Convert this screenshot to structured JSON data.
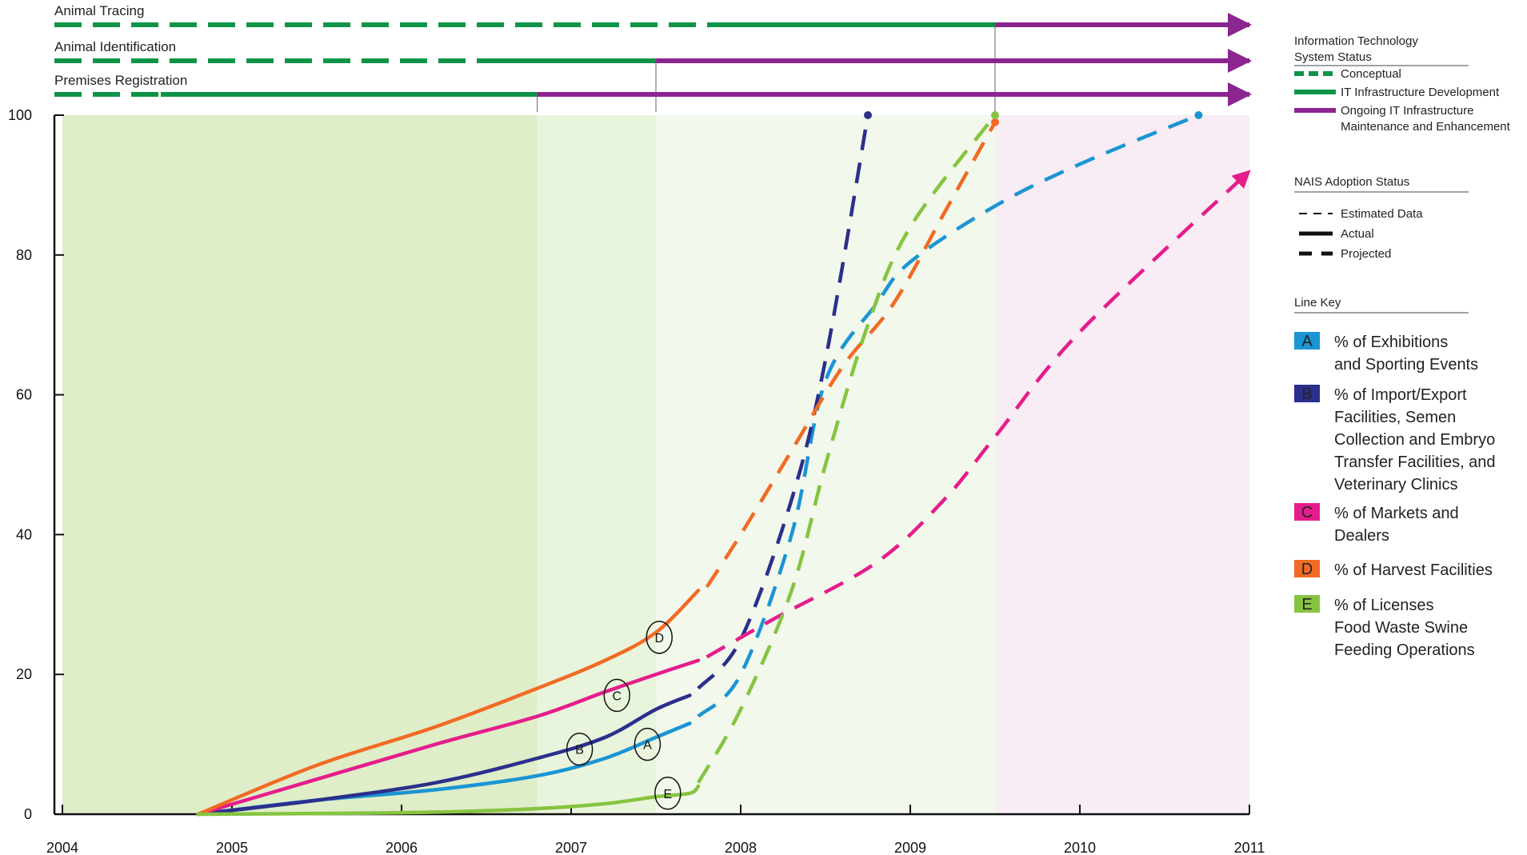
{
  "colors": {
    "conceptual": "#0f9447",
    "infrastructure": "#0f9447",
    "maintenance": "#8b2590",
    "bg_conceptual": "#dfedc8",
    "bg_development": "#e9f4dc",
    "bg_later": "#f2f8ec",
    "bg_maintenance": "#f8ecf5",
    "A": "#1b95d4",
    "B": "#2b2f8c",
    "C": "#e51d8c",
    "D": "#f26a23",
    "E": "#86c440"
  },
  "tracks": [
    {
      "label": "Animal Tracing",
      "conceptual_until": 2007.87,
      "infra_until": 2009.5
    },
    {
      "label": "Animal Identification",
      "conceptual_until": 2006.58,
      "infra_until": 2007.5
    },
    {
      "label": "Premises Registration",
      "conceptual_until": 2004.58,
      "infra_until": 2006.8
    }
  ],
  "legend": {
    "it_title": "Information Technology System Status",
    "it_title_lines": [
      "Information Technology",
      "System Status"
    ],
    "it_items": [
      {
        "key": "conceptual",
        "lines": [
          "Conceptual"
        ]
      },
      {
        "key": "infrastructure",
        "lines": [
          "IT Infrastructure Development"
        ]
      },
      {
        "key": "maintenance",
        "lines": [
          "Ongoing IT Infrastructure",
          "Maintenance and Enhancement"
        ]
      }
    ],
    "nais_title": "NAIS Adoption  Status",
    "nais_items": [
      "Estimated Data",
      "Actual",
      "Projected"
    ],
    "line_key_title": "Line Key",
    "line_key": [
      {
        "letter": "A",
        "lines": [
          "% of Exhibitions",
          "and Sporting Events"
        ]
      },
      {
        "letter": "B",
        "lines": [
          "% of Import/Export",
          "Facilities, Semen",
          "Collection and Embryo",
          "Transfer Facilities,  and",
          "Veterinary Clinics"
        ]
      },
      {
        "letter": "C",
        "lines": [
          "% of Markets and",
          "Dealers"
        ]
      },
      {
        "letter": "D",
        "lines": [
          "% of Harvest Facilities"
        ]
      },
      {
        "letter": "E",
        "lines": [
          "% of Licenses",
          "Food Waste Swine",
          "Feeding Operations"
        ]
      }
    ]
  },
  "chart_data": {
    "type": "line",
    "title": "",
    "xlabel": "",
    "ylabel": "",
    "xlim": [
      2004,
      2011
    ],
    "ylim": [
      0,
      100
    ],
    "x_ticks": [
      "2004",
      "2005",
      "2006",
      "2007",
      "2008",
      "2009",
      "2010",
      "2011"
    ],
    "y_ticks": [
      "0",
      "20",
      "40",
      "60",
      "80",
      "100"
    ],
    "background_periods": [
      {
        "from": 2004,
        "to": 2006.8,
        "status": "conceptual"
      },
      {
        "from": 2006.8,
        "to": 2007.5,
        "status": "development"
      },
      {
        "from": 2007.5,
        "to": 2009.5,
        "status": "later"
      },
      {
        "from": 2009.5,
        "to": 2011,
        "status": "maintenance"
      }
    ],
    "series": [
      {
        "letter": "A",
        "actual": [
          [
            2004.8,
            0
          ],
          [
            2005.5,
            2
          ],
          [
            2006.2,
            3.5
          ],
          [
            2006.8,
            5.5
          ],
          [
            2007.2,
            8
          ],
          [
            2007.5,
            11
          ],
          [
            2007.7,
            13
          ]
        ],
        "projected": [
          [
            2007.75,
            14
          ],
          [
            2008.0,
            20
          ],
          [
            2008.3,
            40
          ],
          [
            2008.5,
            62
          ],
          [
            2008.8,
            73
          ],
          [
            2009.0,
            79
          ],
          [
            2009.5,
            87
          ],
          [
            2010.0,
            93
          ],
          [
            2010.7,
            100
          ]
        ],
        "end_marker": [
          2010.7,
          100
        ],
        "label_at": [
          2007.45,
          10
        ]
      },
      {
        "letter": "B",
        "actual": [
          [
            2004.8,
            0
          ],
          [
            2005.5,
            2
          ],
          [
            2006.2,
            4.5
          ],
          [
            2006.8,
            8
          ],
          [
            2007.2,
            11
          ],
          [
            2007.5,
            15
          ],
          [
            2007.7,
            17
          ]
        ],
        "projected": [
          [
            2007.75,
            18
          ],
          [
            2008.0,
            25
          ],
          [
            2008.3,
            45
          ],
          [
            2008.5,
            65
          ],
          [
            2008.75,
            100
          ]
        ],
        "end_marker": [
          2008.75,
          100
        ],
        "label_at": [
          2007.05,
          9.3
        ]
      },
      {
        "letter": "C",
        "actual": [
          [
            2004.8,
            0
          ],
          [
            2005.5,
            5
          ],
          [
            2006.2,
            10
          ],
          [
            2006.8,
            14
          ],
          [
            2007.2,
            17.5
          ],
          [
            2007.5,
            20
          ],
          [
            2007.75,
            22
          ]
        ],
        "projected": [
          [
            2007.8,
            22.5
          ],
          [
            2008.2,
            28
          ],
          [
            2008.8,
            36
          ],
          [
            2009.2,
            45
          ],
          [
            2009.5,
            54
          ],
          [
            2010.0,
            69
          ],
          [
            2011.0,
            92
          ]
        ],
        "end_marker": null,
        "label_at": [
          2007.27,
          17
        ]
      },
      {
        "letter": "D",
        "actual": [
          [
            2004.8,
            0
          ],
          [
            2005.5,
            7
          ],
          [
            2006.2,
            12.5
          ],
          [
            2006.8,
            18
          ],
          [
            2007.2,
            22
          ],
          [
            2007.5,
            26
          ],
          [
            2007.75,
            32
          ]
        ],
        "projected": [
          [
            2007.8,
            32.5
          ],
          [
            2008.0,
            40
          ],
          [
            2008.3,
            52
          ],
          [
            2008.6,
            64
          ],
          [
            2008.9,
            73
          ],
          [
            2009.2,
            86
          ],
          [
            2009.5,
            99
          ]
        ],
        "end_marker": [
          2009.5,
          99
        ],
        "label_at": [
          2007.52,
          25.3
        ]
      },
      {
        "letter": "E",
        "actual": [
          [
            2004.8,
            0
          ],
          [
            2005.5,
            0.1
          ],
          [
            2006.2,
            0.3
          ],
          [
            2006.8,
            0.8
          ],
          [
            2007.2,
            1.5
          ],
          [
            2007.5,
            2.5
          ],
          [
            2007.7,
            3
          ],
          [
            2007.75,
            4
          ]
        ],
        "projected": [
          [
            2007.75,
            4.5
          ],
          [
            2008.0,
            15
          ],
          [
            2008.3,
            32
          ],
          [
            2008.5,
            50
          ],
          [
            2008.75,
            70
          ],
          [
            2009.0,
            84
          ],
          [
            2009.5,
            100
          ]
        ],
        "end_marker": [
          2009.5,
          100
        ],
        "label_at": [
          2007.57,
          3
        ]
      }
    ],
    "circle_labels": [
      "A",
      "B",
      "C",
      "D",
      "E"
    ]
  }
}
